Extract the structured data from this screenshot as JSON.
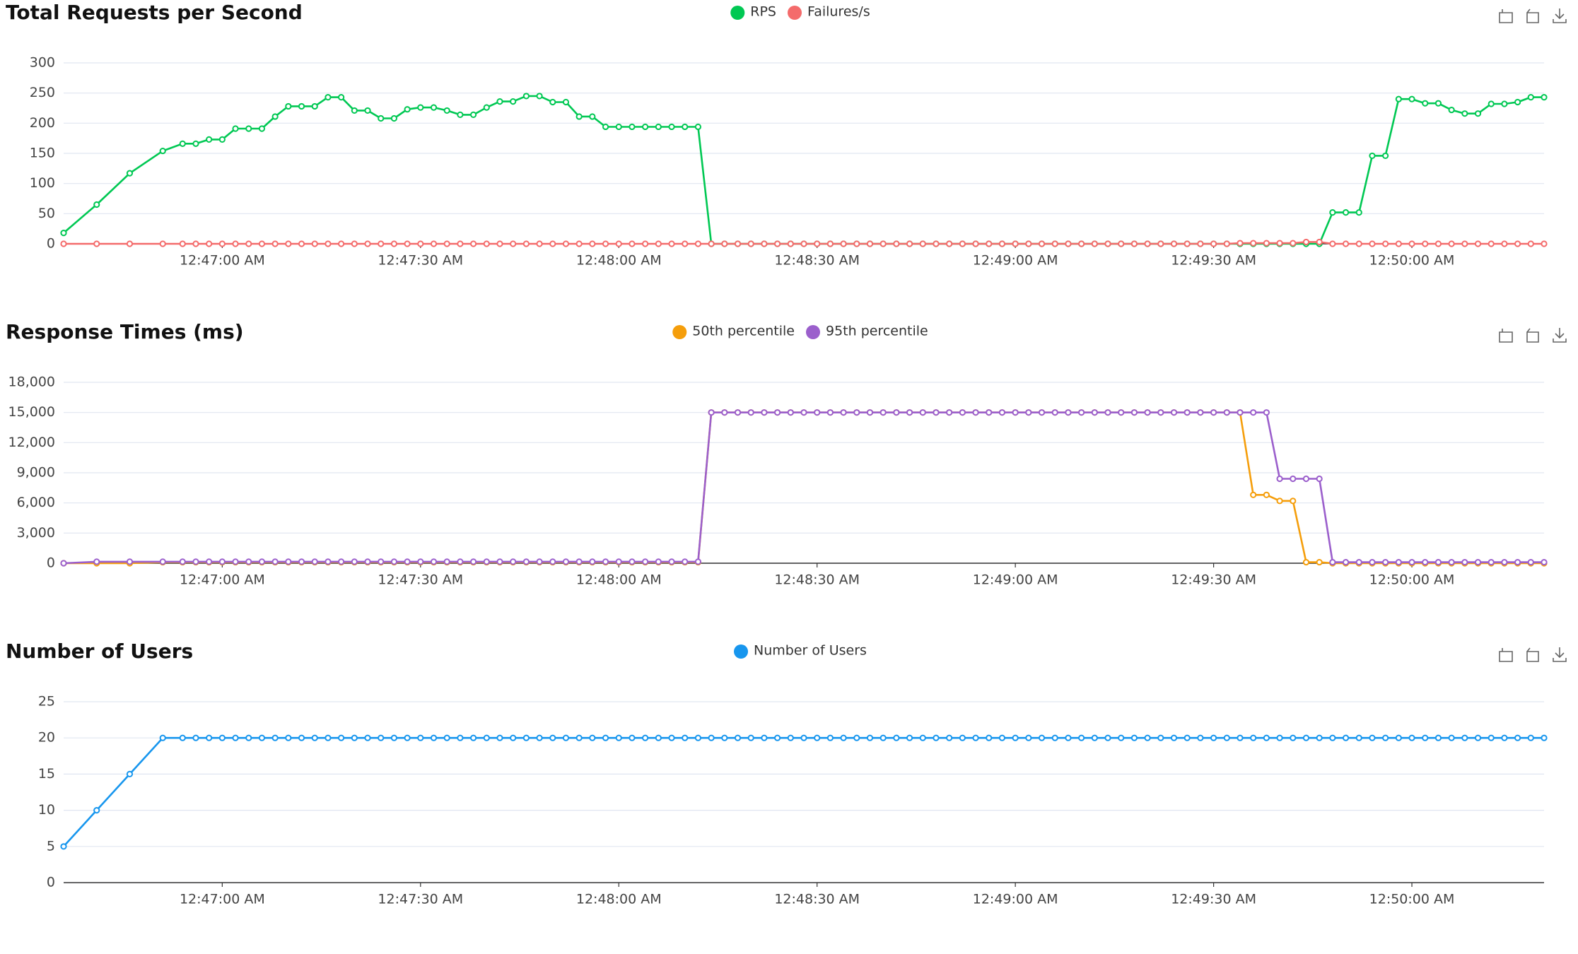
{
  "chart_data": [
    {
      "type": "line",
      "title": "Total Requests per Second",
      "x": [
        "12:46:36 AM",
        "12:46:41 AM",
        "12:46:46 AM",
        "12:46:51 AM",
        "12:46:54 AM",
        "12:46:56 AM",
        "12:46:58 AM",
        "12:47:00 AM",
        "12:47:02 AM",
        "12:47:04 AM",
        "12:47:06 AM",
        "12:47:08 AM",
        "12:47:10 AM",
        "12:47:12 AM",
        "12:47:14 AM",
        "12:47:16 AM",
        "12:47:18 AM",
        "12:47:20 AM",
        "12:47:22 AM",
        "12:47:24 AM",
        "12:47:26 AM",
        "12:47:28 AM",
        "12:47:30 AM",
        "12:47:32 AM",
        "12:47:34 AM",
        "12:47:36 AM",
        "12:47:38 AM",
        "12:47:40 AM",
        "12:47:42 AM",
        "12:47:44 AM",
        "12:47:46 AM",
        "12:47:48 AM",
        "12:47:50 AM",
        "12:47:52 AM",
        "12:47:54 AM",
        "12:47:56 AM",
        "12:47:58 AM",
        "12:48:00 AM",
        "12:48:02 AM",
        "12:48:04 AM",
        "12:48:06 AM",
        "12:48:08 AM",
        "12:48:10 AM",
        "12:48:12 AM",
        "12:48:14 AM",
        "12:48:16 AM",
        "12:48:18 AM",
        "12:48:20 AM",
        "12:48:22 AM",
        "12:48:24 AM",
        "12:48:26 AM",
        "12:48:28 AM",
        "12:48:30 AM",
        "12:48:32 AM",
        "12:48:34 AM",
        "12:48:36 AM",
        "12:48:38 AM",
        "12:48:40 AM",
        "12:48:42 AM",
        "12:48:44 AM",
        "12:48:46 AM",
        "12:48:48 AM",
        "12:48:50 AM",
        "12:48:52 AM",
        "12:48:54 AM",
        "12:48:56 AM",
        "12:48:58 AM",
        "12:49:00 AM",
        "12:49:02 AM",
        "12:49:04 AM",
        "12:49:06 AM",
        "12:49:08 AM",
        "12:49:10 AM",
        "12:49:12 AM",
        "12:49:14 AM",
        "12:49:16 AM",
        "12:49:18 AM",
        "12:49:20 AM",
        "12:49:22 AM",
        "12:49:24 AM",
        "12:49:26 AM",
        "12:49:28 AM",
        "12:49:30 AM",
        "12:49:32 AM",
        "12:49:34 AM",
        "12:49:36 AM",
        "12:49:38 AM",
        "12:49:40 AM",
        "12:49:42 AM",
        "12:49:44 AM",
        "12:49:46 AM",
        "12:49:48 AM",
        "12:49:50 AM",
        "12:49:52 AM",
        "12:49:54 AM",
        "12:49:56 AM",
        "12:49:58 AM",
        "12:50:00 AM",
        "12:50:02 AM",
        "12:50:04 AM",
        "12:50:06 AM",
        "12:50:08 AM",
        "12:50:10 AM",
        "12:50:12 AM",
        "12:50:14 AM",
        "12:50:16 AM",
        "12:50:18 AM",
        "12:50:20 AM"
      ],
      "xlim": [
        "12:46:36 AM",
        "12:50:20 AM"
      ],
      "xticks": [
        "12:47:00 AM",
        "12:47:30 AM",
        "12:48:00 AM",
        "12:48:30 AM",
        "12:49:00 AM",
        "12:49:30 AM",
        "12:50:00 AM"
      ],
      "ylim": [
        0,
        300
      ],
      "yticks": [
        0,
        50,
        100,
        150,
        200,
        250,
        300
      ],
      "grid": true,
      "series": [
        {
          "name": "RPS",
          "color": "#00c853",
          "values": [
            18,
            65,
            117,
            154,
            166,
            166,
            173,
            173,
            191,
            191,
            191,
            211,
            228,
            228,
            228,
            243,
            243,
            221,
            221,
            208,
            208,
            223,
            226,
            226,
            221,
            214,
            214,
            226,
            236,
            236,
            245,
            245,
            235,
            235,
            211,
            211,
            194,
            194,
            194,
            194,
            194,
            194,
            194,
            194,
            0,
            0,
            0,
            0,
            0,
            0,
            0,
            0,
            0,
            0,
            0,
            0,
            0,
            0,
            0,
            0,
            0,
            0,
            0,
            0,
            0,
            0,
            0,
            0,
            0,
            0,
            0,
            0,
            0,
            0,
            0,
            0,
            0,
            0,
            0,
            0,
            0,
            0,
            0,
            0,
            0,
            0,
            0,
            0,
            0,
            0,
            0,
            52,
            52,
            52,
            146,
            146,
            240,
            240,
            233,
            233,
            222,
            216,
            216,
            232,
            232,
            235,
            243,
            243
          ]
        },
        {
          "name": "Failures/s",
          "color": "#f46b6b",
          "values": [
            0,
            0,
            0,
            0,
            0,
            0,
            0,
            0,
            0,
            0,
            0,
            0,
            0,
            0,
            0,
            0,
            0,
            0,
            0,
            0,
            0,
            0,
            0,
            0,
            0,
            0,
            0,
            0,
            0,
            0,
            0,
            0,
            0,
            0,
            0,
            0,
            0,
            0,
            0,
            0,
            0,
            0,
            0,
            0,
            0,
            0,
            0,
            0,
            0,
            0,
            0,
            0,
            0,
            0,
            0,
            0,
            0,
            0,
            0,
            0,
            0,
            0,
            0,
            0,
            0,
            0,
            0,
            0,
            0,
            0,
            0,
            0,
            0,
            0,
            0,
            0,
            0,
            0,
            0,
            0,
            0,
            0,
            0,
            0,
            1,
            1,
            1,
            1,
            1,
            3,
            3,
            0,
            0,
            0,
            0,
            0,
            0,
            0,
            0,
            0,
            0,
            0,
            0,
            0,
            0,
            0,
            0,
            0
          ]
        }
      ]
    },
    {
      "type": "line",
      "title": "Response Times (ms)",
      "x": [
        "12:46:36 AM",
        "12:46:41 AM",
        "12:46:46 AM",
        "12:46:51 AM",
        "12:46:54 AM",
        "12:46:56 AM",
        "12:46:58 AM",
        "12:47:00 AM",
        "12:47:02 AM",
        "12:47:04 AM",
        "12:47:06 AM",
        "12:47:08 AM",
        "12:47:10 AM",
        "12:47:12 AM",
        "12:47:14 AM",
        "12:47:16 AM",
        "12:47:18 AM",
        "12:47:20 AM",
        "12:47:22 AM",
        "12:47:24 AM",
        "12:47:26 AM",
        "12:47:28 AM",
        "12:47:30 AM",
        "12:47:32 AM",
        "12:47:34 AM",
        "12:47:36 AM",
        "12:47:38 AM",
        "12:47:40 AM",
        "12:47:42 AM",
        "12:47:44 AM",
        "12:47:46 AM",
        "12:47:48 AM",
        "12:47:50 AM",
        "12:47:52 AM",
        "12:47:54 AM",
        "12:47:56 AM",
        "12:47:58 AM",
        "12:48:00 AM",
        "12:48:02 AM",
        "12:48:04 AM",
        "12:48:06 AM",
        "12:48:08 AM",
        "12:48:10 AM",
        "12:48:12 AM",
        "12:48:14 AM",
        "12:48:16 AM",
        "12:48:18 AM",
        "12:48:20 AM",
        "12:48:22 AM",
        "12:48:24 AM",
        "12:48:26 AM",
        "12:48:28 AM",
        "12:48:30 AM",
        "12:48:32 AM",
        "12:48:34 AM",
        "12:48:36 AM",
        "12:48:38 AM",
        "12:48:40 AM",
        "12:48:42 AM",
        "12:48:44 AM",
        "12:48:46 AM",
        "12:48:48 AM",
        "12:48:50 AM",
        "12:48:52 AM",
        "12:48:54 AM",
        "12:48:56 AM",
        "12:48:58 AM",
        "12:49:00 AM",
        "12:49:02 AM",
        "12:49:04 AM",
        "12:49:06 AM",
        "12:49:08 AM",
        "12:49:10 AM",
        "12:49:12 AM",
        "12:49:14 AM",
        "12:49:16 AM",
        "12:49:18 AM",
        "12:49:20 AM",
        "12:49:22 AM",
        "12:49:24 AM",
        "12:49:26 AM",
        "12:49:28 AM",
        "12:49:30 AM",
        "12:49:32 AM",
        "12:49:34 AM",
        "12:49:36 AM",
        "12:49:38 AM",
        "12:49:40 AM",
        "12:49:42 AM",
        "12:49:44 AM",
        "12:49:46 AM",
        "12:49:48 AM",
        "12:49:50 AM",
        "12:49:52 AM",
        "12:49:54 AM",
        "12:49:56 AM",
        "12:49:58 AM",
        "12:50:00 AM",
        "12:50:02 AM",
        "12:50:04 AM",
        "12:50:06 AM",
        "12:50:08 AM",
        "12:50:10 AM",
        "12:50:12 AM",
        "12:50:14 AM",
        "12:50:16 AM",
        "12:50:18 AM",
        "12:50:20 AM"
      ],
      "xlim": [
        "12:46:36 AM",
        "12:50:20 AM"
      ],
      "xticks": [
        "12:47:00 AM",
        "12:47:30 AM",
        "12:48:00 AM",
        "12:48:30 AM",
        "12:49:00 AM",
        "12:49:30 AM",
        "12:50:00 AM"
      ],
      "ylim": [
        0,
        18000
      ],
      "yticks": [
        0,
        {
          "value": 3000,
          "label": "3,000"
        },
        {
          "value": 6000,
          "label": "6,000"
        },
        {
          "value": 9000,
          "label": "9,000"
        },
        {
          "value": 12000,
          "label": "12,000"
        },
        {
          "value": 15000,
          "label": "15,000"
        },
        {
          "value": 18000,
          "label": "18,000"
        }
      ],
      "grid": true,
      "series": [
        {
          "name": "50th percentile",
          "color": "#f59e0b",
          "values": [
            0,
            0,
            0,
            100,
            100,
            100,
            100,
            100,
            100,
            100,
            100,
            100,
            100,
            100,
            100,
            100,
            100,
            100,
            100,
            100,
            100,
            100,
            100,
            100,
            100,
            100,
            100,
            100,
            100,
            100,
            100,
            100,
            100,
            100,
            100,
            100,
            100,
            100,
            100,
            100,
            100,
            100,
            100,
            100,
            15000,
            15000,
            15000,
            15000,
            15000,
            15000,
            15000,
            15000,
            15000,
            15000,
            15000,
            15000,
            15000,
            15000,
            15000,
            15000,
            15000,
            15000,
            15000,
            15000,
            15000,
            15000,
            15000,
            15000,
            15000,
            15000,
            15000,
            15000,
            15000,
            15000,
            15000,
            15000,
            15000,
            15000,
            15000,
            15000,
            15000,
            15000,
            15000,
            15000,
            15000,
            6800,
            6800,
            6200,
            6200,
            100,
            100,
            0,
            0,
            0,
            0,
            0,
            0,
            0,
            0,
            0,
            0,
            0,
            0,
            0,
            0,
            0,
            0,
            0
          ]
        },
        {
          "name": "95th percentile",
          "color": "#9b5fcc",
          "values": [
            0,
            150,
            150,
            150,
            150,
            150,
            150,
            150,
            150,
            150,
            150,
            150,
            150,
            150,
            150,
            150,
            150,
            150,
            150,
            150,
            150,
            150,
            150,
            150,
            150,
            150,
            150,
            150,
            150,
            150,
            150,
            150,
            150,
            150,
            150,
            150,
            150,
            150,
            150,
            150,
            150,
            150,
            150,
            150,
            15000,
            15000,
            15000,
            15000,
            15000,
            15000,
            15000,
            15000,
            15000,
            15000,
            15000,
            15000,
            15000,
            15000,
            15000,
            15000,
            15000,
            15000,
            15000,
            15000,
            15000,
            15000,
            15000,
            15000,
            15000,
            15000,
            15000,
            15000,
            15000,
            15000,
            15000,
            15000,
            15000,
            15000,
            15000,
            15000,
            15000,
            15000,
            15000,
            15000,
            15000,
            15000,
            15000,
            8400,
            8400,
            8400,
            8400,
            100,
            100,
            100,
            100,
            100,
            100,
            100,
            100,
            100,
            100,
            100,
            100,
            100,
            100,
            100,
            100,
            100
          ]
        }
      ]
    },
    {
      "type": "line",
      "title": "Number of Users",
      "x": [
        "12:46:36 AM",
        "12:46:41 AM",
        "12:46:46 AM",
        "12:46:51 AM",
        "12:46:54 AM",
        "12:46:56 AM",
        "12:46:58 AM",
        "12:47:00 AM",
        "12:47:02 AM",
        "12:47:04 AM",
        "12:47:06 AM",
        "12:47:08 AM",
        "12:47:10 AM",
        "12:47:12 AM",
        "12:47:14 AM",
        "12:47:16 AM",
        "12:47:18 AM",
        "12:47:20 AM",
        "12:47:22 AM",
        "12:47:24 AM",
        "12:47:26 AM",
        "12:47:28 AM",
        "12:47:30 AM",
        "12:47:32 AM",
        "12:47:34 AM",
        "12:47:36 AM",
        "12:47:38 AM",
        "12:47:40 AM",
        "12:47:42 AM",
        "12:47:44 AM",
        "12:47:46 AM",
        "12:47:48 AM",
        "12:47:50 AM",
        "12:47:52 AM",
        "12:47:54 AM",
        "12:47:56 AM",
        "12:47:58 AM",
        "12:48:00 AM",
        "12:48:02 AM",
        "12:48:04 AM",
        "12:48:06 AM",
        "12:48:08 AM",
        "12:48:10 AM",
        "12:48:12 AM",
        "12:48:14 AM",
        "12:48:16 AM",
        "12:48:18 AM",
        "12:48:20 AM",
        "12:48:22 AM",
        "12:48:24 AM",
        "12:48:26 AM",
        "12:48:28 AM",
        "12:48:30 AM",
        "12:48:32 AM",
        "12:48:34 AM",
        "12:48:36 AM",
        "12:48:38 AM",
        "12:48:40 AM",
        "12:48:42 AM",
        "12:48:44 AM",
        "12:48:46 AM",
        "12:48:48 AM",
        "12:48:50 AM",
        "12:48:52 AM",
        "12:48:54 AM",
        "12:48:56 AM",
        "12:48:58 AM",
        "12:49:00 AM",
        "12:49:02 AM",
        "12:49:04 AM",
        "12:49:06 AM",
        "12:49:08 AM",
        "12:49:10 AM",
        "12:49:12 AM",
        "12:49:14 AM",
        "12:49:16 AM",
        "12:49:18 AM",
        "12:49:20 AM",
        "12:49:22 AM",
        "12:49:24 AM",
        "12:49:26 AM",
        "12:49:28 AM",
        "12:49:30 AM",
        "12:49:32 AM",
        "12:49:34 AM",
        "12:49:36 AM",
        "12:49:38 AM",
        "12:49:40 AM",
        "12:49:42 AM",
        "12:49:44 AM",
        "12:49:46 AM",
        "12:49:48 AM",
        "12:49:50 AM",
        "12:49:52 AM",
        "12:49:54 AM",
        "12:49:56 AM",
        "12:49:58 AM",
        "12:50:00 AM",
        "12:50:02 AM",
        "12:50:04 AM",
        "12:50:06 AM",
        "12:50:08 AM",
        "12:50:10 AM",
        "12:50:12 AM",
        "12:50:14 AM",
        "12:50:16 AM",
        "12:50:18 AM",
        "12:50:20 AM"
      ],
      "xlim": [
        "12:46:36 AM",
        "12:50:20 AM"
      ],
      "xticks": [
        "12:47:00 AM",
        "12:47:30 AM",
        "12:48:00 AM",
        "12:48:30 AM",
        "12:49:00 AM",
        "12:49:30 AM",
        "12:50:00 AM"
      ],
      "ylim": [
        0,
        25
      ],
      "yticks": [
        0,
        5,
        10,
        15,
        20,
        25
      ],
      "grid": true,
      "series": [
        {
          "name": "Number of Users",
          "color": "#1796ee",
          "values": [
            5,
            10,
            15,
            20,
            20,
            20,
            20,
            20,
            20,
            20,
            20,
            20,
            20,
            20,
            20,
            20,
            20,
            20,
            20,
            20,
            20,
            20,
            20,
            20,
            20,
            20,
            20,
            20,
            20,
            20,
            20,
            20,
            20,
            20,
            20,
            20,
            20,
            20,
            20,
            20,
            20,
            20,
            20,
            20,
            20,
            20,
            20,
            20,
            20,
            20,
            20,
            20,
            20,
            20,
            20,
            20,
            20,
            20,
            20,
            20,
            20,
            20,
            20,
            20,
            20,
            20,
            20,
            20,
            20,
            20,
            20,
            20,
            20,
            20,
            20,
            20,
            20,
            20,
            20,
            20,
            20,
            20,
            20,
            20,
            20,
            20,
            20,
            20,
            20,
            20,
            20,
            20,
            20,
            20,
            20,
            20,
            20,
            20,
            20,
            20,
            20,
            20,
            20,
            20,
            20,
            20,
            20,
            20
          ]
        }
      ]
    }
  ]
}
